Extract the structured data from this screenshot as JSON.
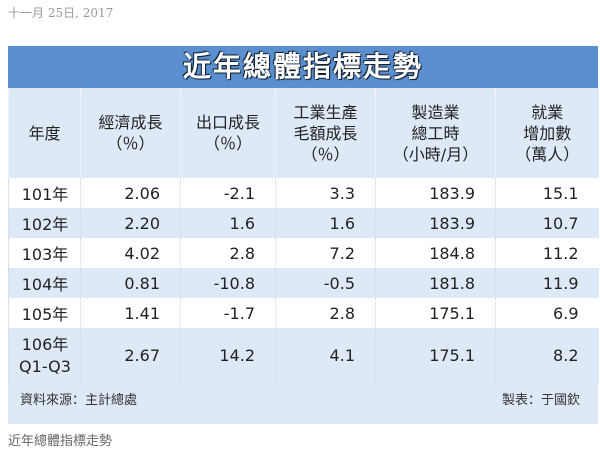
{
  "date": "十一月 25日, 2017",
  "table": {
    "title": "近年總體指標走勢",
    "header": [
      [
        "年度"
      ],
      [
        "經濟成長",
        "（％）"
      ],
      [
        "出口成長",
        "（％）"
      ],
      [
        "工業生產",
        "毛額成長",
        "（％）"
      ],
      [
        "製造業",
        "總工時",
        "（小時/月）"
      ],
      [
        "就業",
        "增加數",
        "（萬人）"
      ]
    ],
    "rows": [
      [
        [
          "101年"
        ],
        "2.06",
        "-2.1",
        "3.3",
        "183.9",
        "15.1"
      ],
      [
        [
          "102年"
        ],
        "2.20",
        "1.6",
        "1.6",
        "183.9",
        "10.7"
      ],
      [
        [
          "103年"
        ],
        "4.02",
        "2.8",
        "7.2",
        "184.8",
        "11.2"
      ],
      [
        [
          "104年"
        ],
        "0.81",
        "-10.8",
        "-0.5",
        "181.8",
        "11.9"
      ],
      [
        [
          "105年"
        ],
        "1.41",
        "-1.7",
        "2.8",
        "175.1",
        "6.9"
      ],
      [
        [
          "106年",
          "Q1-Q3"
        ],
        "2.67",
        "14.2",
        "4.1",
        "175.1",
        "8.2"
      ]
    ],
    "source": "資料來源：主計總處",
    "author": "製表：于國欽"
  },
  "caption": "近年總體指標走勢"
}
